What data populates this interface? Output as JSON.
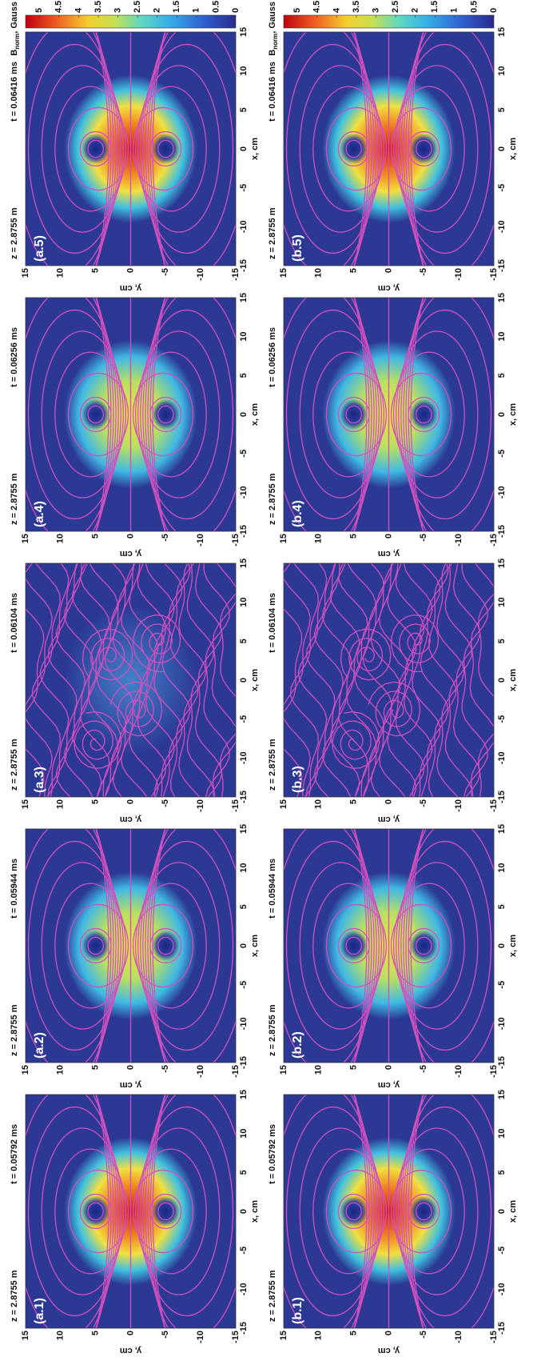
{
  "rows": [
    {
      "colorbar": {
        "symbol": "B",
        "subscript": "norm",
        "unit": ", Gauss",
        "ticks": [
          "0",
          "0.5",
          "1",
          "1.5",
          "2",
          "2.5",
          "3",
          "3.5",
          "4",
          "4.5",
          "5"
        ]
      },
      "panels": [
        {
          "label": "(a.1)",
          "z": "z = 2.8755 m",
          "t": "t = 0.05792 ms"
        },
        {
          "label": "(a.2)",
          "z": "z = 2.8755 m",
          "t": "t = 0.05944 ms"
        },
        {
          "label": "(a.3)",
          "z": "z = 2.8755 m",
          "t": "t = 0.06104 ms"
        },
        {
          "label": "(a.4)",
          "z": "z = 2.8755 m",
          "t": "t = 0.06256 ms"
        },
        {
          "label": "(a.5)",
          "z": "z = 2.8755 m",
          "t": "t = 0.06416 ms"
        }
      ]
    },
    {
      "colorbar": {
        "symbol": "B",
        "subscript": "norm",
        "unit": ", Gauss",
        "ticks": [
          "0",
          "0.5",
          "1",
          "1.5",
          "2",
          "2.5",
          "3",
          "3.5",
          "4",
          "4.5",
          "5"
        ]
      },
      "panels": [
        {
          "label": "(b.1)",
          "z": "z = 2.8755 m",
          "t": "t = 0.05792 ms"
        },
        {
          "label": "(b.2)",
          "z": "z = 2.8755 m",
          "t": "t = 0.05944 ms"
        },
        {
          "label": "(b.3)",
          "z": "z = 2.8755 m",
          "t": "t = 0.06104 ms"
        },
        {
          "label": "(b.4)",
          "z": "z = 2.8755 m",
          "t": "t = 0.06256 ms"
        },
        {
          "label": "(b.5)",
          "z": "z = 2.8755 m",
          "t": "t = 0.06416 ms"
        }
      ]
    }
  ],
  "axes": {
    "ticks": [
      "-15",
      "-10",
      "-5",
      "0",
      "5",
      "10",
      "15"
    ],
    "xlabel": "x, cm",
    "ylabel": "y, cm"
  }
}
